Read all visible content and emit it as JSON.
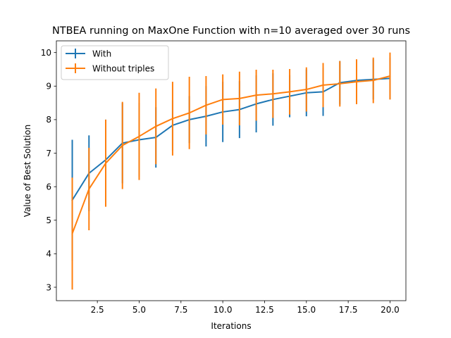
{
  "chart_data": {
    "type": "line",
    "title": "NTBEA running on MaxOne Function with n=10 averaged over 30 runs",
    "xlabel": "Iterations",
    "ylabel": "Value of Best Solution",
    "xlim": [
      0.05,
      20.95
    ],
    "ylim": [
      2.6,
      10.35
    ],
    "xticks": [
      2.5,
      5.0,
      7.5,
      10.0,
      12.5,
      15.0,
      17.5,
      20.0
    ],
    "xtick_labels": [
      "2.5",
      "5.0",
      "7.5",
      "10.0",
      "12.5",
      "15.0",
      "17.5",
      "20.0"
    ],
    "yticks": [
      3,
      4,
      5,
      6,
      7,
      8,
      9,
      10
    ],
    "ytick_labels": [
      "3",
      "4",
      "5",
      "6",
      "7",
      "8",
      "9",
      "10"
    ],
    "grid": false,
    "legend_position": "top-left",
    "x": [
      1,
      2,
      3,
      4,
      5,
      6,
      7,
      8,
      9,
      10,
      11,
      12,
      13,
      14,
      15,
      16,
      17,
      18,
      19,
      20
    ],
    "series": [
      {
        "name": "With",
        "color": "#1f77b4",
        "values": [
          5.6,
          6.4,
          6.8,
          7.3,
          7.4,
          7.47,
          7.83,
          8.0,
          8.1,
          8.23,
          8.3,
          8.47,
          8.6,
          8.7,
          8.8,
          8.83,
          9.1,
          9.17,
          9.2,
          9.23
        ],
        "errors": [
          1.8,
          1.13,
          1.2,
          1.2,
          1.1,
          0.9,
          0.75,
          0.7,
          0.9,
          0.9,
          0.85,
          0.85,
          0.78,
          0.63,
          0.7,
          0.72,
          0.65,
          0.55,
          0.6,
          0.62
        ]
      },
      {
        "name": "Without triples",
        "color": "#ff7f0e",
        "values": [
          4.6,
          5.93,
          6.7,
          7.23,
          7.5,
          7.8,
          8.03,
          8.2,
          8.43,
          8.6,
          8.63,
          8.73,
          8.77,
          8.83,
          8.9,
          9.03,
          9.07,
          9.13,
          9.17,
          9.3
        ],
        "errors": [
          1.67,
          1.23,
          1.3,
          1.3,
          1.3,
          1.13,
          1.1,
          1.08,
          0.87,
          0.75,
          0.8,
          0.76,
          0.72,
          0.68,
          0.66,
          0.66,
          0.68,
          0.67,
          0.68,
          0.7
        ]
      }
    ]
  }
}
